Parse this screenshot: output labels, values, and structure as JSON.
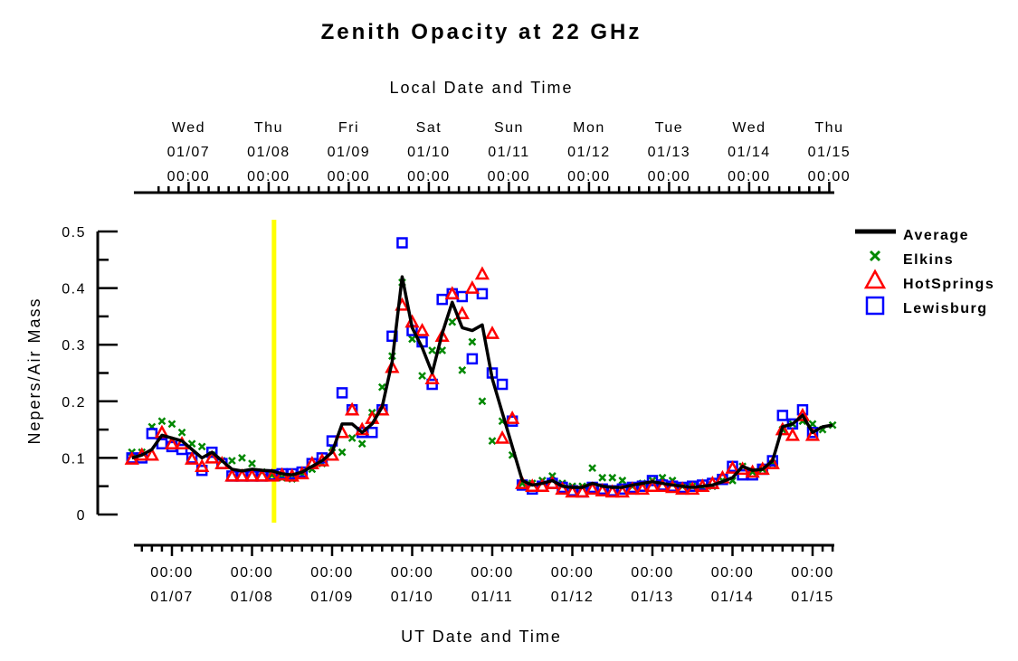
{
  "chart_data": {
    "type": "line",
    "title": "Zenith Opacity at 22 GHz",
    "top_axis_label": "Local Date and Time",
    "xlabel": "UT Date and Time",
    "ylabel": "Nepers/Air Mass",
    "x_units": "hours since 01/07 00:00 UT",
    "xlim": [
      -11.4,
      198.5
    ],
    "ylim": [
      0,
      0.5
    ],
    "y_ticks": [
      "0",
      "0.1",
      "0.2",
      "0.3",
      "0.4",
      "0.5"
    ],
    "y_tick_values": [
      0,
      0.1,
      0.2,
      0.3,
      0.4,
      0.5
    ],
    "bottom_ticks": [
      {
        "time": "00:00",
        "date": "01/07",
        "hour": 0
      },
      {
        "time": "00:00",
        "date": "01/08",
        "hour": 24
      },
      {
        "time": "00:00",
        "date": "01/09",
        "hour": 48
      },
      {
        "time": "00:00",
        "date": "01/10",
        "hour": 72
      },
      {
        "time": "00:00",
        "date": "01/11",
        "hour": 96
      },
      {
        "time": "00:00",
        "date": "01/12",
        "hour": 120
      },
      {
        "time": "00:00",
        "date": "01/13",
        "hour": 144
      },
      {
        "time": "00:00",
        "date": "01/14",
        "hour": 168
      },
      {
        "time": "00:00",
        "date": "01/15",
        "hour": 192
      }
    ],
    "top_ticks": [
      {
        "day": "Wed",
        "date": "01/07",
        "time": "00:00",
        "hour": 5
      },
      {
        "day": "Thu",
        "date": "01/08",
        "time": "00:00",
        "hour": 29
      },
      {
        "day": "Fri",
        "date": "01/09",
        "time": "00:00",
        "hour": 53
      },
      {
        "day": "Sat",
        "date": "01/10",
        "time": "00:00",
        "hour": 77
      },
      {
        "day": "Sun",
        "date": "01/11",
        "time": "00:00",
        "hour": 101
      },
      {
        "day": "Mon",
        "date": "01/12",
        "time": "00:00",
        "hour": 125
      },
      {
        "day": "Tue",
        "date": "01/13",
        "time": "00:00",
        "hour": 149
      },
      {
        "day": "Wed",
        "date": "01/14",
        "time": "00:00",
        "hour": 173
      },
      {
        "day": "Thu",
        "date": "01/15",
        "time": "00:00",
        "hour": 197
      }
    ],
    "current_time_marker_hour": 30.6,
    "legend_position": "right",
    "x": [
      -12,
      -9,
      -6,
      -3,
      0,
      3,
      6,
      9,
      12,
      15,
      18,
      21,
      24,
      27,
      30,
      33,
      36,
      39,
      42,
      45,
      48,
      51,
      54,
      57,
      60,
      63,
      66,
      69,
      72,
      75,
      78,
      81,
      84,
      87,
      90,
      93,
      96,
      99,
      102,
      105,
      108,
      111,
      114,
      117,
      120,
      123,
      126,
      129,
      132,
      135,
      138,
      141,
      144,
      147,
      150,
      153,
      156,
      159,
      162,
      165,
      168,
      171,
      174,
      177,
      180,
      183,
      186,
      189,
      192,
      195,
      198
    ],
    "series": [
      {
        "name": "Average",
        "style": "line",
        "color": "#000000",
        "values": [
          0.1,
          0.105,
          0.115,
          0.14,
          0.135,
          0.13,
          0.115,
          0.1,
          0.11,
          0.095,
          0.08,
          0.077,
          0.08,
          0.078,
          0.077,
          0.072,
          0.07,
          0.075,
          0.085,
          0.095,
          0.11,
          0.16,
          0.16,
          0.145,
          0.16,
          0.19,
          0.27,
          0.42,
          0.33,
          0.295,
          0.25,
          0.32,
          0.375,
          0.33,
          0.325,
          0.335,
          0.24,
          0.18,
          0.12,
          0.06,
          0.052,
          0.055,
          0.06,
          0.05,
          0.048,
          0.048,
          0.055,
          0.05,
          0.048,
          0.048,
          0.052,
          0.055,
          0.058,
          0.055,
          0.052,
          0.05,
          0.048,
          0.05,
          0.052,
          0.058,
          0.065,
          0.085,
          0.078,
          0.08,
          0.095,
          0.155,
          0.16,
          0.175,
          0.145,
          0.155,
          0.158
        ]
      },
      {
        "name": "Elkins",
        "style": "x",
        "color": "#008800",
        "values": [
          0.11,
          0.11,
          0.155,
          0.165,
          0.16,
          0.145,
          0.125,
          0.12,
          0.105,
          0.095,
          0.095,
          0.1,
          0.09,
          0.075,
          0.07,
          0.065,
          0.063,
          0.07,
          0.08,
          0.09,
          0.118,
          0.11,
          0.135,
          0.125,
          0.18,
          0.225,
          0.28,
          0.41,
          0.31,
          0.245,
          0.29,
          0.29,
          0.34,
          0.255,
          0.305,
          0.2,
          0.13,
          0.165,
          0.105,
          0.055,
          0.055,
          0.06,
          0.068,
          0.055,
          0.05,
          0.05,
          0.082,
          0.065,
          0.065,
          0.06,
          0.05,
          0.055,
          0.06,
          0.065,
          0.06,
          0.05,
          0.05,
          0.048,
          0.05,
          0.06,
          0.06,
          0.085,
          0.075,
          0.08,
          0.09,
          0.15,
          0.16,
          0.165,
          0.16,
          0.15,
          0.158
        ]
      },
      {
        "name": "HotSprings",
        "style": "triangle",
        "color": "#ff0000",
        "values": [
          0.098,
          0.105,
          0.105,
          0.145,
          0.125,
          0.125,
          0.098,
          0.085,
          0.1,
          0.09,
          0.068,
          0.068,
          0.068,
          0.068,
          0.068,
          0.07,
          0.068,
          0.072,
          0.09,
          0.095,
          0.105,
          0.145,
          0.185,
          0.15,
          0.17,
          0.185,
          0.26,
          0.37,
          0.34,
          0.325,
          0.24,
          0.315,
          0.39,
          0.355,
          0.4,
          0.425,
          0.32,
          0.135,
          0.17,
          0.055,
          0.05,
          0.05,
          0.055,
          0.045,
          0.04,
          0.04,
          0.045,
          0.042,
          0.04,
          0.04,
          0.045,
          0.045,
          0.05,
          0.05,
          0.048,
          0.045,
          0.045,
          0.05,
          0.055,
          0.065,
          0.082,
          0.08,
          0.075,
          0.08,
          0.09,
          0.15,
          0.14,
          0.175,
          0.14,
          null,
          null
        ]
      },
      {
        "name": "Lewisburg",
        "style": "square",
        "color": "#0000ff",
        "values": [
          0.1,
          0.1,
          0.143,
          0.125,
          0.12,
          0.115,
          0.1,
          0.078,
          0.11,
          0.09,
          0.068,
          0.068,
          0.068,
          0.068,
          0.07,
          0.072,
          0.072,
          0.075,
          0.09,
          0.1,
          0.13,
          0.215,
          0.185,
          0.145,
          0.145,
          0.185,
          0.315,
          0.48,
          0.325,
          0.305,
          0.23,
          0.38,
          0.39,
          0.385,
          0.275,
          0.39,
          0.25,
          0.23,
          0.165,
          0.052,
          0.045,
          0.05,
          0.055,
          0.048,
          0.042,
          0.04,
          0.048,
          0.045,
          0.042,
          0.045,
          0.048,
          0.05,
          0.06,
          0.052,
          0.05,
          0.048,
          0.05,
          0.052,
          0.055,
          0.062,
          0.085,
          0.07,
          0.07,
          0.08,
          0.095,
          0.175,
          0.16,
          0.185,
          0.145,
          null,
          null
        ]
      }
    ]
  }
}
